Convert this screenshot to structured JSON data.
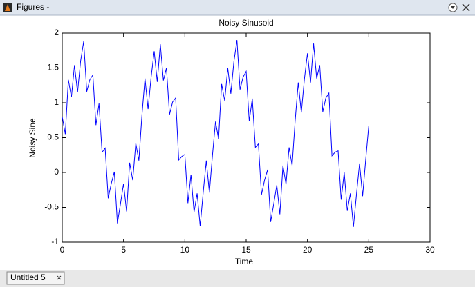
{
  "window_title": "Figures -",
  "tab": "Untitled 5",
  "chart_data": {
    "type": "line",
    "title": "Noisy Sinusoid",
    "x_label": "Time",
    "y_label": "Noisy Sine",
    "x": [
      0,
      0.25,
      0.5,
      0.75,
      1,
      1.25,
      1.5,
      1.75,
      2,
      2.25,
      2.5,
      2.75,
      3,
      3.25,
      3.5,
      3.75,
      4,
      4.25,
      4.5,
      4.75,
      5,
      5.25,
      5.5,
      5.75,
      6,
      6.25,
      6.5,
      6.75,
      7,
      7.25,
      7.5,
      7.75,
      8,
      8.25,
      8.5,
      8.75,
      9,
      9.25,
      9.5,
      9.75,
      10,
      10.25,
      10.5,
      10.75,
      11,
      11.25,
      11.5,
      11.75,
      12,
      12.25,
      12.5,
      12.75,
      13,
      13.25,
      13.5,
      13.75,
      14,
      14.25,
      14.5,
      14.75,
      15,
      15.25,
      15.5,
      15.75,
      16,
      16.25,
      16.5,
      16.75,
      17,
      17.25,
      17.5,
      17.75,
      18,
      18.25,
      18.5,
      18.75,
      19,
      19.25,
      19.5,
      19.75,
      20,
      20.25,
      20.5,
      20.75,
      21,
      21.25,
      21.5,
      21.75,
      22,
      22.25,
      22.5,
      22.75,
      23,
      23.25,
      23.5,
      23.75,
      24,
      24.25,
      24.5,
      24.75,
      25
    ],
    "series": [
      {
        "name": "Noisy Sine",
        "color": "#0000ff",
        "values": [
          0.8,
          0.55,
          1.33,
          1.08,
          1.54,
          1.15,
          1.6,
          1.88,
          1.16,
          1.33,
          1.4,
          0.68,
          0.99,
          0.29,
          0.35,
          -0.37,
          -0.16,
          0.01,
          -0.73,
          -0.45,
          -0.16,
          -0.56,
          0.14,
          -0.11,
          0.42,
          0.17,
          0.82,
          1.35,
          0.91,
          1.37,
          1.74,
          1.3,
          1.84,
          1.32,
          1.5,
          0.83,
          1.01,
          1.07,
          0.18,
          0.23,
          0.26,
          -0.44,
          -0.03,
          -0.57,
          -0.3,
          -0.77,
          -0.28,
          0.17,
          -0.29,
          0.24,
          0.73,
          0.48,
          1.27,
          1.03,
          1.5,
          1.13,
          1.59,
          1.9,
          1.19,
          1.37,
          1.45,
          0.74,
          1.06,
          0.36,
          0.41,
          -0.32,
          -0.11,
          0.04,
          -0.71,
          -0.45,
          -0.18,
          -0.6,
          0.1,
          -0.17,
          0.36,
          0.1,
          0.75,
          1.29,
          0.86,
          1.34,
          1.71,
          1.29,
          1.85,
          1.35,
          1.54,
          0.87,
          1.07,
          1.14,
          0.24,
          0.29,
          0.31,
          -0.39,
          0.0,
          -0.55,
          -0.3,
          -0.78,
          -0.31,
          0.13,
          -0.34,
          0.18,
          0.67
        ]
      }
    ],
    "xlim": [
      0,
      30
    ],
    "xticks": [
      0,
      5,
      10,
      15,
      20,
      25,
      30
    ],
    "ylim": [
      -1,
      2
    ],
    "yticks": [
      -1,
      -0.5,
      0,
      0.5,
      1,
      1.5,
      2
    ]
  }
}
